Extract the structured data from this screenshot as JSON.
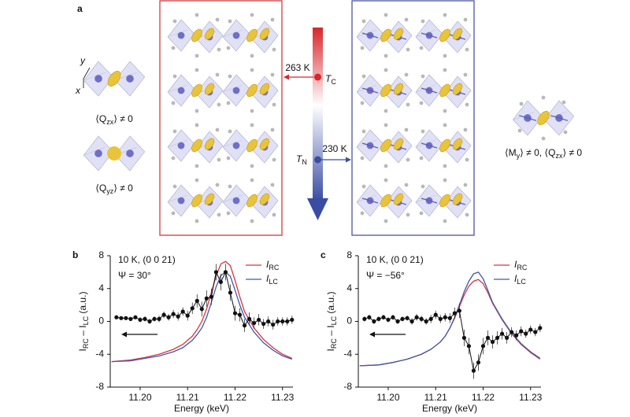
{
  "panel_a": {
    "label": "a",
    "axis_y": "y",
    "axis_x": "x",
    "left_labels": [
      [
        "⟨Q",
        "zx",
        "⟩ ≠ 0"
      ],
      [
        "⟨Q",
        "yz",
        "⟩ ≠ 0"
      ]
    ],
    "right_label": [
      "⟨M",
      "y",
      "⟩ ≠ 0, ⟨Q",
      "zx",
      "⟩ ≠ 0"
    ],
    "tc": {
      "temp": "263 K",
      "symbol": "T",
      "sub": "C"
    },
    "tn": {
      "temp": "230 K",
      "symbol": "T",
      "sub": "N"
    }
  },
  "chart_data": [
    {
      "type": "line",
      "panel": "b",
      "annotations": [
        "10 K, (0 0 21)",
        "Ψ = 30°"
      ],
      "xlabel": "Energy (keV)",
      "ylabel": [
        "I",
        "RC",
        " – I",
        "LC",
        " (a.u.)"
      ],
      "xlim": [
        11.1937,
        11.2322
      ],
      "ylim": [
        -8,
        8
      ],
      "xticks": [
        {
          "value": 11.2,
          "label": "11.20"
        },
        {
          "value": 11.21,
          "label": "11.21"
        },
        {
          "value": 11.22,
          "label": "11.22"
        },
        {
          "value": 11.23,
          "label": "11.23"
        }
      ],
      "yticks": [
        8,
        4,
        0,
        -4,
        -8
      ],
      "series": [
        {
          "name": "I",
          "name_sub": "RC",
          "color": "#d9343f",
          "x": [
            11.194,
            11.198,
            11.201,
            11.204,
            11.207,
            11.209,
            11.211,
            11.212,
            11.213,
            11.214,
            11.215,
            11.216,
            11.217,
            11.218,
            11.219,
            11.22,
            11.221,
            11.222,
            11.224,
            11.226,
            11.228,
            11.23,
            11.232
          ],
          "values": [
            -4.9,
            -4.7,
            -4.4,
            -4.0,
            -3.4,
            -2.8,
            -1.8,
            -1.0,
            0,
            1.5,
            3.5,
            5.5,
            7.0,
            7.3,
            6.8,
            5.0,
            3.0,
            1.2,
            -0.8,
            -2.2,
            -3.2,
            -4.0,
            -4.5
          ]
        },
        {
          "name": "I",
          "name_sub": "LC",
          "color": "#3f5aa8",
          "x": [
            11.194,
            11.198,
            11.201,
            11.204,
            11.207,
            11.209,
            11.211,
            11.212,
            11.213,
            11.214,
            11.215,
            11.216,
            11.217,
            11.218,
            11.219,
            11.22,
            11.221,
            11.222,
            11.224,
            11.226,
            11.228,
            11.23,
            11.232
          ],
          "values": [
            -4.9,
            -4.8,
            -4.5,
            -4.2,
            -3.7,
            -3.2,
            -2.3,
            -1.6,
            -0.8,
            0.5,
            2.3,
            4.2,
            5.6,
            6.0,
            5.5,
            3.8,
            2.0,
            0.5,
            -1.3,
            -2.6,
            -3.5,
            -4.2,
            -4.6
          ]
        },
        {
          "color": "#111111",
          "x": [
            11.195,
            11.196,
            11.197,
            11.198,
            11.199,
            11.2,
            11.201,
            11.202,
            11.203,
            11.204,
            11.205,
            11.206,
            11.207,
            11.208,
            11.209,
            11.21,
            11.211,
            11.212,
            11.213,
            11.214,
            11.215,
            11.216,
            11.217,
            11.218,
            11.219,
            11.22,
            11.221,
            11.222,
            11.223,
            11.224,
            11.225,
            11.226,
            11.227,
            11.228,
            11.229,
            11.23,
            11.231,
            11.232
          ],
          "values": [
            0.5,
            0.4,
            0.4,
            0.3,
            0.5,
            0.2,
            0.3,
            0.0,
            0.3,
            0.3,
            0.8,
            0.5,
            0.9,
            0.6,
            1.2,
            0.7,
            1.6,
            2.5,
            1.5,
            2.8,
            3.0,
            6.0,
            4.8,
            6.0,
            3.5,
            1.0,
            0.8,
            -0.5,
            0.3,
            -0.2,
            0.2,
            -0.3,
            0.0,
            -0.4,
            0.0,
            0.0,
            0.0,
            0.2
          ],
          "errors": [
            0.2,
            0.2,
            0.2,
            0.2,
            0.2,
            0.3,
            0.3,
            0.3,
            0.3,
            0.4,
            0.4,
            0.4,
            0.5,
            0.5,
            0.5,
            0.6,
            0.7,
            0.8,
            0.9,
            1.0,
            1.0,
            1.0,
            1.0,
            1.0,
            1.0,
            0.9,
            0.8,
            0.8,
            0.8,
            0.7,
            0.7,
            0.6,
            0.6,
            0.6,
            0.5,
            0.5,
            0.5,
            0.5
          ]
        }
      ]
    },
    {
      "type": "line",
      "panel": "c",
      "annotations": [
        "10 K, (0 0 21)",
        "Ψ = −56°"
      ],
      "xlabel": "Energy (keV)",
      "ylabel": [
        "I",
        "RC",
        " – I",
        "LC",
        " (a.u.)"
      ],
      "xlim": [
        11.1937,
        11.2322
      ],
      "ylim": [
        -8,
        8
      ],
      "xticks": [
        {
          "value": 11.2,
          "label": "11.20"
        },
        {
          "value": 11.21,
          "label": "11.21"
        },
        {
          "value": 11.22,
          "label": "11.22"
        },
        {
          "value": 11.23,
          "label": "11.23"
        }
      ],
      "yticks": [
        8,
        4,
        0,
        -4,
        -8
      ],
      "series": [
        {
          "name": "I",
          "name_sub": "RC",
          "color": "#d9343f",
          "x": [
            11.194,
            11.198,
            11.201,
            11.204,
            11.207,
            11.209,
            11.211,
            11.212,
            11.213,
            11.214,
            11.215,
            11.216,
            11.217,
            11.218,
            11.219,
            11.22,
            11.221,
            11.222,
            11.224,
            11.226,
            11.228,
            11.23,
            11.232
          ],
          "values": [
            -5.4,
            -5.3,
            -5.0,
            -4.6,
            -4.0,
            -3.4,
            -2.5,
            -1.8,
            -0.8,
            0.4,
            1.8,
            3.2,
            4.3,
            4.9,
            5.1,
            4.6,
            3.5,
            2.2,
            0.2,
            -1.5,
            -2.8,
            -3.8,
            -4.6
          ]
        },
        {
          "name": "I",
          "name_sub": "LC",
          "color": "#3f5aa8",
          "x": [
            11.194,
            11.198,
            11.201,
            11.204,
            11.207,
            11.209,
            11.211,
            11.212,
            11.213,
            11.214,
            11.215,
            11.216,
            11.217,
            11.218,
            11.219,
            11.22,
            11.221,
            11.222,
            11.224,
            11.226,
            11.228,
            11.23,
            11.232
          ],
          "values": [
            -5.4,
            -5.3,
            -5.0,
            -4.6,
            -4.0,
            -3.4,
            -2.5,
            -1.8,
            -0.8,
            0.5,
            2.0,
            3.6,
            4.9,
            5.8,
            6.0,
            5.2,
            3.8,
            2.3,
            0.3,
            -1.4,
            -2.7,
            -3.7,
            -4.5
          ]
        },
        {
          "color": "#111111",
          "x": [
            11.195,
            11.196,
            11.197,
            11.198,
            11.199,
            11.2,
            11.201,
            11.202,
            11.203,
            11.204,
            11.205,
            11.206,
            11.207,
            11.208,
            11.209,
            11.21,
            11.211,
            11.212,
            11.213,
            11.214,
            11.215,
            11.216,
            11.217,
            11.218,
            11.219,
            11.22,
            11.221,
            11.222,
            11.223,
            11.224,
            11.225,
            11.226,
            11.227,
            11.228,
            11.229,
            11.23,
            11.231,
            11.232
          ],
          "values": [
            0.3,
            0.5,
            0.0,
            0.3,
            0.5,
            0.2,
            0.5,
            0.0,
            0.3,
            0.4,
            0.0,
            0.5,
            0.3,
            0.0,
            0.3,
            0.8,
            0.3,
            0.5,
            0.4,
            1.0,
            1.3,
            -2.0,
            -3.0,
            -6.0,
            -5.0,
            -3.0,
            -2.0,
            -2.5,
            -2.0,
            -1.5,
            -2.0,
            -1.3,
            -1.7,
            -1.2,
            -1.5,
            -1.0,
            -1.3,
            -0.8
          ],
          "errors": [
            0.3,
            0.3,
            0.3,
            0.3,
            0.3,
            0.3,
            0.3,
            0.3,
            0.3,
            0.3,
            0.4,
            0.4,
            0.4,
            0.4,
            0.5,
            0.5,
            0.5,
            0.5,
            0.6,
            0.7,
            0.9,
            1.0,
            1.0,
            1.0,
            1.0,
            1.0,
            0.9,
            0.8,
            0.8,
            0.7,
            0.7,
            0.6,
            0.6,
            0.6,
            0.5,
            0.5,
            0.5,
            0.5
          ]
        }
      ]
    }
  ]
}
